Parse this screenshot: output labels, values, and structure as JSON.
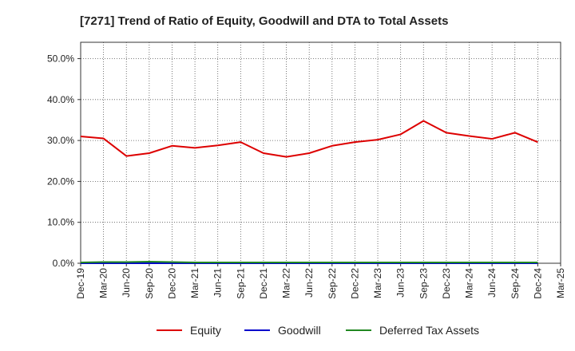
{
  "chart_data": {
    "type": "line",
    "title": "[7271]  Trend of Ratio of Equity, Goodwill and DTA to Total Assets",
    "xlabel": "",
    "ylabel": "",
    "ylim": [
      0,
      54
    ],
    "yticks": [
      0,
      10,
      20,
      30,
      40,
      50
    ],
    "ytick_labels": [
      "0.0%",
      "10.0%",
      "20.0%",
      "30.0%",
      "40.0%",
      "50.0%"
    ],
    "categories": [
      "Dec-19",
      "Mar-20",
      "Jun-20",
      "Sep-20",
      "Dec-20",
      "Mar-21",
      "Jun-21",
      "Sep-21",
      "Dec-21",
      "Mar-22",
      "Jun-22",
      "Sep-22",
      "Dec-22",
      "Mar-23",
      "Jun-23",
      "Sep-23",
      "Dec-23",
      "Mar-24",
      "Jun-24",
      "Sep-24",
      "Dec-24",
      "Mar-25"
    ],
    "grid": true,
    "legend_position": "bottom-center",
    "series": [
      {
        "name": "Equity",
        "color": "#dd0000",
        "values": [
          31.0,
          30.5,
          26.2,
          26.9,
          28.7,
          28.2,
          28.8,
          29.6,
          26.9,
          26.0,
          26.9,
          28.7,
          29.6,
          30.2,
          31.5,
          34.8,
          31.9,
          31.1,
          30.4,
          31.9,
          29.6,
          null
        ]
      },
      {
        "name": "Goodwill",
        "color": "#0000cc",
        "values": [
          0,
          0,
          0,
          0,
          0,
          0,
          0,
          0,
          0,
          0,
          0,
          0,
          0,
          0,
          0,
          0,
          0,
          0,
          0,
          0,
          0,
          null
        ]
      },
      {
        "name": "Deferred Tax Assets",
        "color": "#228822",
        "values": [
          0.2,
          0.3,
          0.3,
          0.4,
          0.3,
          0.2,
          0.2,
          0.2,
          0.2,
          0.2,
          0.2,
          0.2,
          0.2,
          0.2,
          0.2,
          0.2,
          0.2,
          0.2,
          0.2,
          0.2,
          0.2,
          null
        ]
      }
    ]
  }
}
